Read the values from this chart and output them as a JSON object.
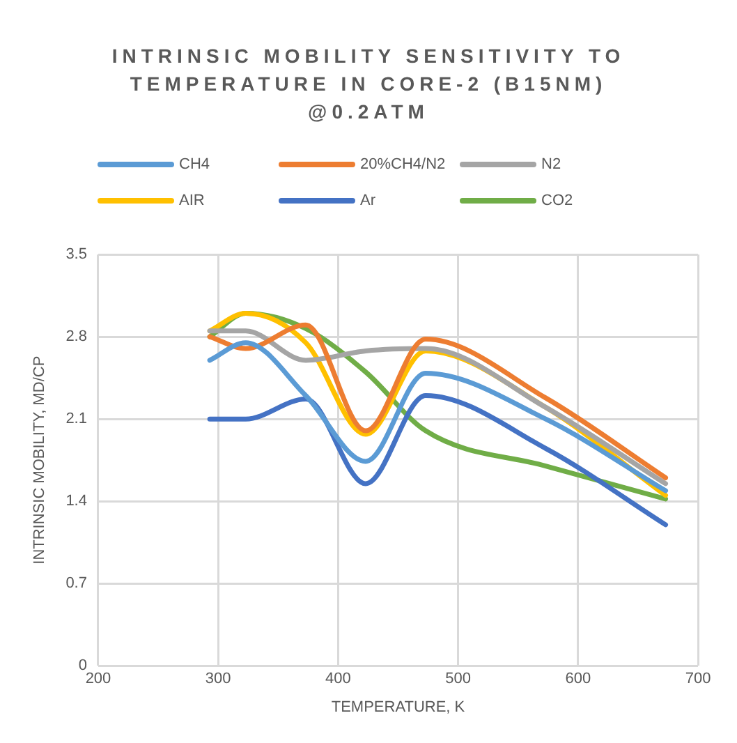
{
  "chart_data": {
    "type": "line",
    "title": "INTRINSIC MOBILITY SENSITIVITY TO TEMPERATURE IN CORE-2 (B15NM) @0.2ATM",
    "xlabel": "TEMPERATURE, K",
    "ylabel": "INTRINSIC MOBILITY, MD/CP",
    "x": [
      293,
      323,
      373,
      423,
      473,
      573,
      673
    ],
    "series": [
      {
        "name": "CH4",
        "color": "#5b9bd5",
        "values": [
          2.6,
          2.75,
          2.3,
          1.74,
          2.49,
          2.1,
          1.49
        ]
      },
      {
        "name": "20%CH4/N2",
        "color": "#ed7d31",
        "values": [
          2.8,
          2.7,
          2.9,
          2.0,
          2.78,
          2.28,
          1.6
        ]
      },
      {
        "name": "N2",
        "color": "#a5a5a5",
        "values": [
          2.85,
          2.85,
          2.6,
          2.68,
          2.7,
          2.2,
          1.55
        ]
      },
      {
        "name": "AIR",
        "color": "#ffc000",
        "values": [
          2.85,
          3.0,
          2.75,
          1.97,
          2.68,
          2.2,
          1.45
        ]
      },
      {
        "name": "Ar",
        "color": "#4472c4",
        "values": [
          2.1,
          2.1,
          2.27,
          1.55,
          2.3,
          1.85,
          1.2
        ]
      },
      {
        "name": "CO2",
        "color": "#70ad47",
        "values": [
          2.8,
          3.0,
          2.87,
          2.5,
          2.0,
          1.7,
          1.42
        ]
      }
    ],
    "xlim": [
      200,
      700
    ],
    "xticks": [
      200,
      300,
      400,
      500,
      600,
      700
    ],
    "ylim": [
      0,
      3.5
    ],
    "yticks": [
      0,
      0.7,
      1.4,
      2.1,
      2.8,
      3.5
    ],
    "grid": true,
    "legend": "top",
    "marker": "none",
    "line_style": "solid"
  }
}
